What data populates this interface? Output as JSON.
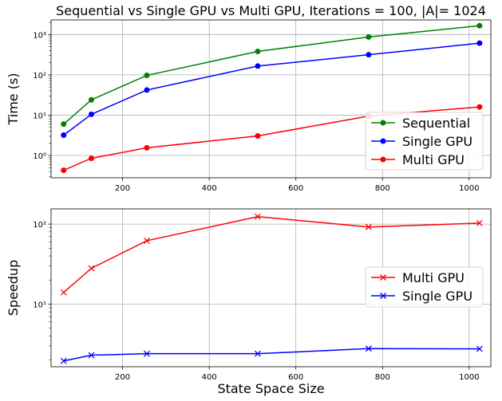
{
  "chart_data": [
    {
      "type": "line",
      "title": "Sequential vs Single GPU vs Multi GPU, Iterations = 100, |A|= 1024",
      "xlabel": "",
      "ylabel": "Time (s)",
      "yscale": "log",
      "xlim": [
        35,
        1050
      ],
      "ylim": [
        0.28,
        2300
      ],
      "x_ticks": [
        200,
        400,
        600,
        800,
        1000
      ],
      "y_ticks": [
        1,
        10,
        100,
        1000
      ],
      "y_tick_labels": [
        "10⁰",
        "10¹",
        "10²",
        "10³"
      ],
      "grid": true,
      "legend": "lower-right",
      "x": [
        64,
        128,
        256,
        512,
        768,
        1024
      ],
      "series": [
        {
          "name": "Sequential",
          "color": "#008000",
          "marker": "circle",
          "values": [
            6,
            24,
            97,
            380,
            870,
            1650
          ]
        },
        {
          "name": "Single GPU",
          "color": "#0000ff",
          "marker": "circle",
          "values": [
            3.2,
            10.5,
            42,
            165,
            315,
            610
          ]
        },
        {
          "name": "Multi GPU",
          "color": "#ff0000",
          "marker": "circle",
          "values": [
            0.43,
            0.85,
            1.55,
            3.05,
            9.5,
            16
          ]
        }
      ]
    },
    {
      "type": "line",
      "title": "",
      "xlabel": "State Space Size",
      "ylabel": "Speedup",
      "yscale": "log",
      "xlim": [
        35,
        1050
      ],
      "ylim": [
        1.65,
        155
      ],
      "x_ticks": [
        200,
        400,
        600,
        800,
        1000
      ],
      "y_ticks": [
        10,
        100
      ],
      "y_tick_labels": [
        "10¹",
        "10²"
      ],
      "grid": true,
      "legend": "center-right",
      "x": [
        64,
        128,
        256,
        512,
        768,
        1024
      ],
      "series": [
        {
          "name": "Multi GPU",
          "color": "#ff0000",
          "marker": "x",
          "values": [
            14,
            28,
            62,
            124,
            92,
            103
          ]
        },
        {
          "name": "Single GPU",
          "color": "#0000ff",
          "marker": "x",
          "values": [
            1.95,
            2.3,
            2.4,
            2.4,
            2.78,
            2.76
          ]
        }
      ]
    }
  ]
}
